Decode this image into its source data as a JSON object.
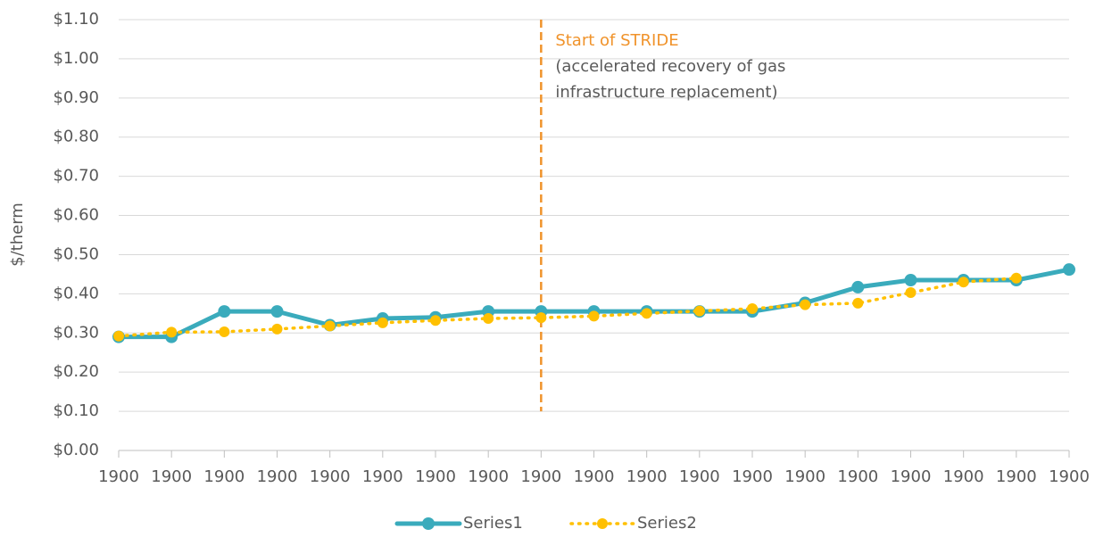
{
  "chart_data": {
    "type": "line",
    "y_label": "$/therm",
    "categories": [
      "1900",
      "1900",
      "1900",
      "1900",
      "1900",
      "1900",
      "1900",
      "1900",
      "1900",
      "1900",
      "1900",
      "1900",
      "1900",
      "1900",
      "1900",
      "1900",
      "1900",
      "1900",
      "1900"
    ],
    "series": [
      {
        "name": "Series1",
        "color": "#3aabbc",
        "style": "solid",
        "values": [
          0.29,
          0.29,
          0.355,
          0.355,
          0.32,
          0.337,
          0.34,
          0.355,
          0.355,
          0.355,
          0.355,
          0.355,
          0.355,
          0.377,
          0.417,
          0.435,
          0.435,
          0.435,
          0.462
        ]
      },
      {
        "name": "Series2",
        "color": "#ffc000",
        "style": "dotted",
        "values": [
          0.292,
          0.302,
          0.303,
          0.31,
          0.318,
          0.326,
          0.332,
          0.337,
          0.339,
          0.343,
          0.35,
          0.356,
          0.362,
          0.372,
          0.376,
          0.403,
          0.43,
          0.44,
          null
        ]
      }
    ],
    "ylim": [
      0,
      1.1
    ],
    "yticks": [
      {
        "value": 0,
        "label": "$0.00"
      },
      {
        "value": 0.1,
        "label": "$0.10"
      },
      {
        "value": 0.2,
        "label": "$0.20"
      },
      {
        "value": 0.3,
        "label": "$0.30"
      },
      {
        "value": 0.4,
        "label": "$0.40"
      },
      {
        "value": 0.5,
        "label": "$0.50"
      },
      {
        "value": 0.6,
        "label": "$0.60"
      },
      {
        "value": 0.7,
        "label": "$0.70"
      },
      {
        "value": 0.8,
        "label": "$0.80"
      },
      {
        "value": 0.9,
        "label": "$0.90"
      },
      {
        "value": 1.0,
        "label": "$1.00"
      },
      {
        "value": 1.1,
        "label": "$1.10"
      }
    ],
    "grid": true,
    "legend": "bottom",
    "vline": {
      "at": 8,
      "color": "#f0932b",
      "label": "Start of STRIDE",
      "text": [
        "(accelerated recovery of gas",
        "infrastructure replacement)"
      ]
    }
  }
}
